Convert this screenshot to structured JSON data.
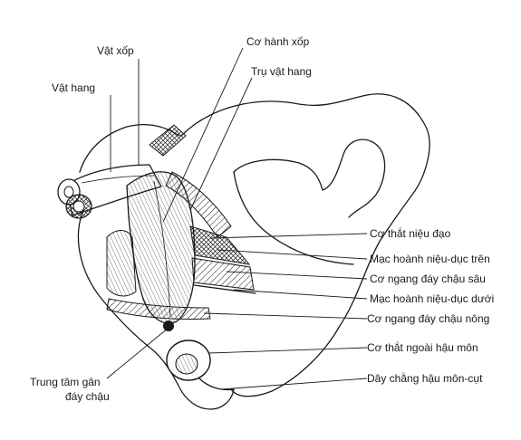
{
  "labels": {
    "vat_xop": "Vật xốp",
    "vat_hang": "Vật hang",
    "co_hanh_xop": "Cơ hành xốp",
    "tru_vat_hang": "Trụ vật hang",
    "co_that_nieu_dao": "Cơ thắt niệu đạo",
    "mac_hoanh_tren": "Mạc hoành niệu-dục trên",
    "co_ngang_day_chau_sau": "Cơ ngang đáy chậu sâu",
    "mac_hoanh_duoi": "Mạc hoành niệu-dục dưới",
    "co_ngang_day_chau_nong": "Cơ ngang đáy chậu nông",
    "co_that_ngoai_hau_mon": "Cơ thắt ngoài hậu môn",
    "day_chang_hau_mon_cut": "Dây chằng hậu môn-cụt",
    "trung_tam_gan_1": "Trung tâm gân",
    "trung_tam_gan_2": "đáy chậu"
  },
  "colors": {
    "ink": "#1a1a1a",
    "paper": "#ffffff"
  }
}
